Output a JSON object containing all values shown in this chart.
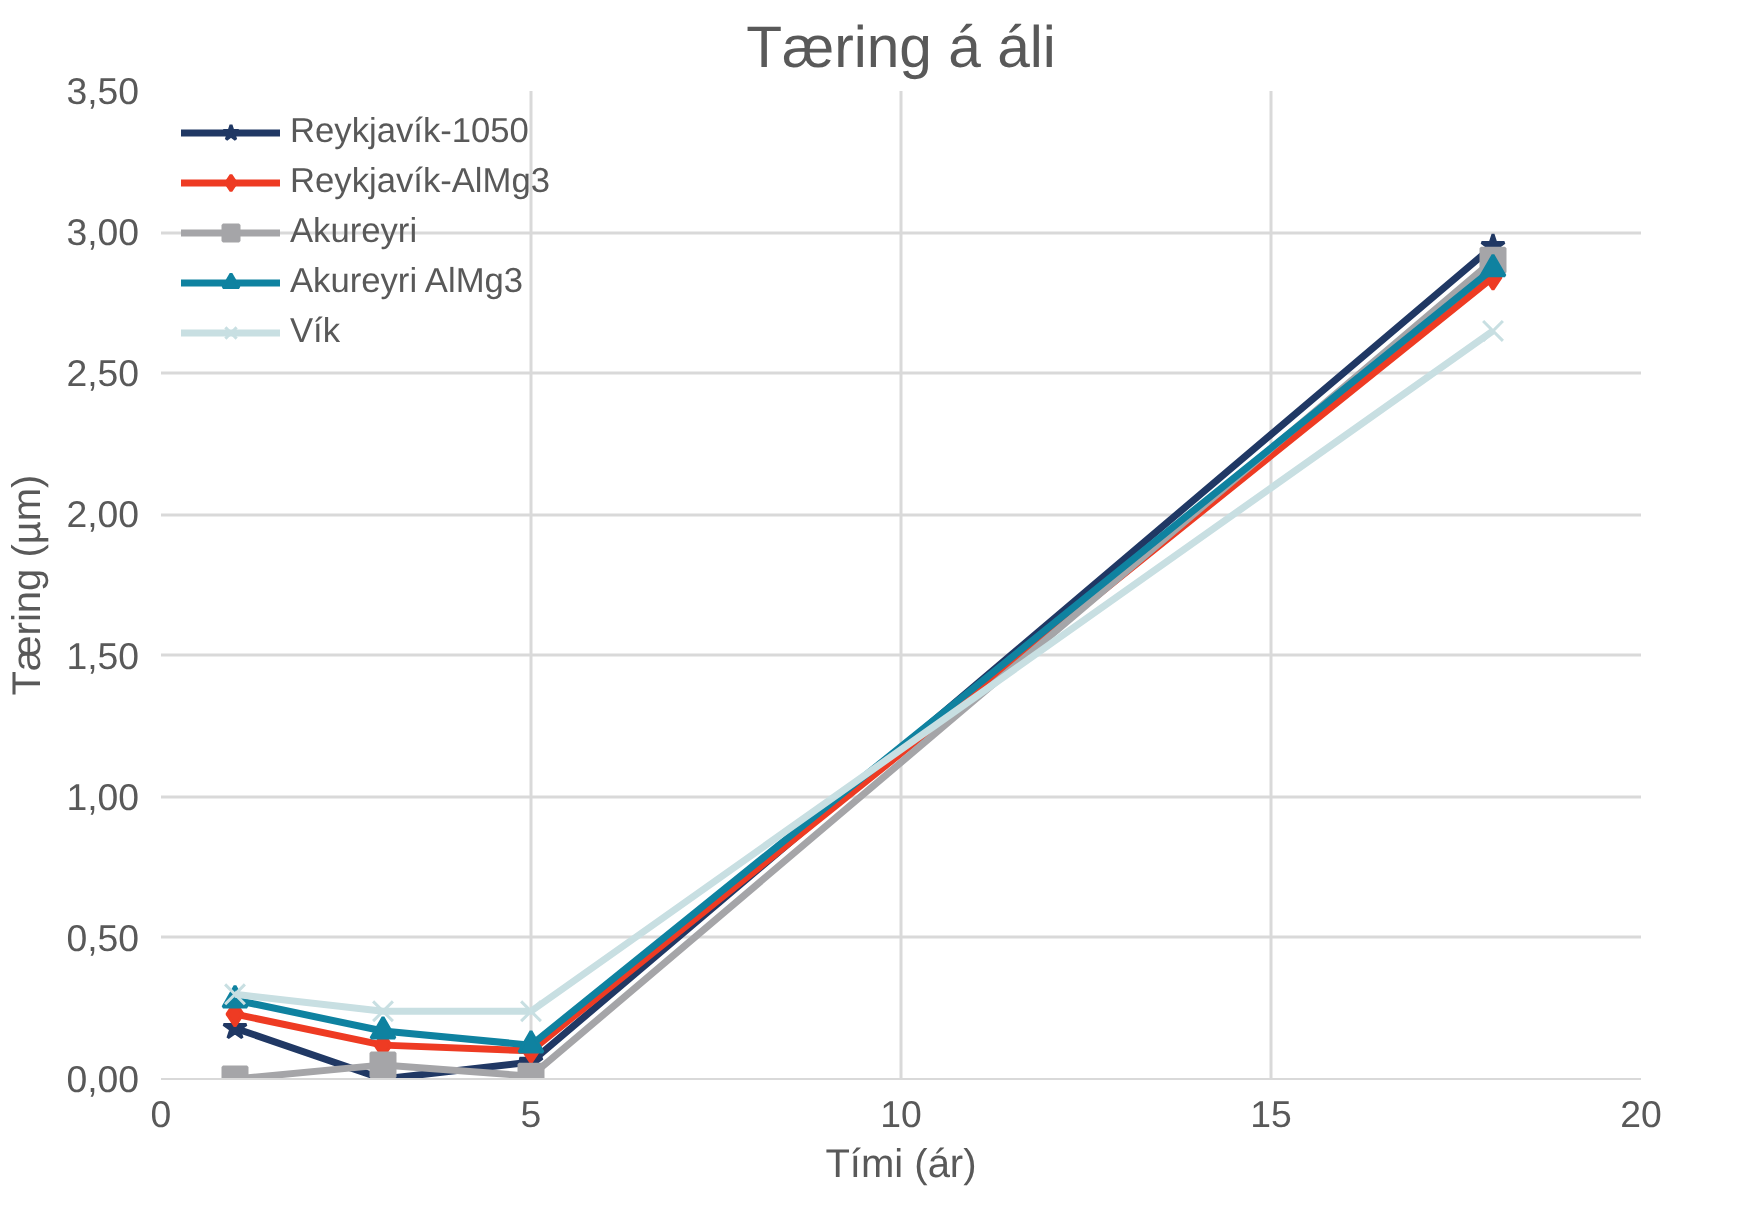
{
  "chart_data": {
    "type": "line",
    "title": "Tæring á áli",
    "xlabel": "Tími (ár)",
    "ylabel": "Tæring (µm)",
    "x": [
      1,
      3,
      5,
      18
    ],
    "series": [
      {
        "name": "Reykjavík-1050",
        "color": "#203864",
        "marker": "star",
        "values": [
          0.18,
          0.0,
          0.06,
          2.95
        ]
      },
      {
        "name": "Reykjavík-AlMg3",
        "color": "#ee3b23",
        "marker": "diamond",
        "values": [
          0.23,
          0.12,
          0.1,
          2.84
        ]
      },
      {
        "name": "Akureyri",
        "color": "#a5a5a8",
        "marker": "square",
        "values": [
          0.0,
          0.05,
          0.01,
          2.9
        ]
      },
      {
        "name": "Akureyri AlMg3",
        "color": "#0f82a0",
        "marker": "triangle",
        "values": [
          0.28,
          0.17,
          0.12,
          2.87
        ]
      },
      {
        "name": "Vík",
        "color": "#c8dfe2",
        "marker": "cross",
        "values": [
          0.3,
          0.24,
          0.24,
          2.65
        ]
      }
    ],
    "xlim": [
      0,
      20
    ],
    "xticks": [
      0,
      5,
      10,
      15,
      20
    ],
    "ylim": [
      0,
      3.5
    ],
    "yticks": [
      {
        "value": 0,
        "label": "0,00"
      },
      {
        "value": 0.5,
        "label": "0,50"
      },
      {
        "value": 1,
        "label": "1,00"
      },
      {
        "value": 1.5,
        "label": "1,50"
      },
      {
        "value": 2,
        "label": "2,00"
      },
      {
        "value": 2.5,
        "label": "2,50"
      },
      {
        "value": 3,
        "label": "3,00"
      },
      {
        "value": 3.5,
        "label": "3,50"
      }
    ],
    "grid": true,
    "legend": "top left",
    "line_style": "solid"
  }
}
